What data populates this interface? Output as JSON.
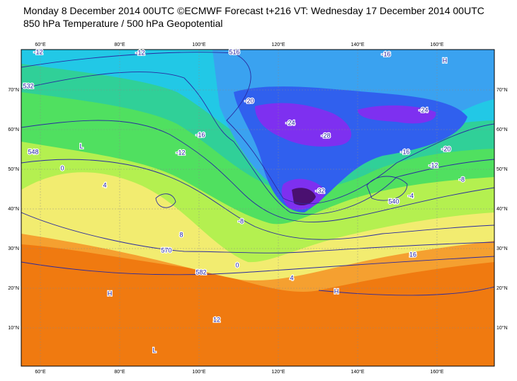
{
  "header": {
    "title": "Monday 8 December 2014 00UTC ©ECMWF Forecast t+216 VT: Wednesday 17 December 2014 00UTC",
    "subtitle": "850 hPa Temperature / 500 hPa Geopotential"
  },
  "map": {
    "longitude_labels": [
      "60°E",
      "80°E",
      "100°E",
      "120°E",
      "140°E",
      "160°E"
    ],
    "latitude_labels": [
      "70°N",
      "60°N",
      "50°N",
      "40°N",
      "30°N",
      "20°N",
      "10°N"
    ],
    "contour_labels": [
      "-12",
      "-12",
      "516",
      "-16",
      "532",
      "-20",
      "-24",
      "-24",
      "-28",
      "-16",
      "548",
      "-12",
      "-16",
      "-20",
      "-12",
      "0",
      "4",
      "-8",
      "-32",
      "540",
      "-8",
      "-4",
      "8",
      "570",
      "0",
      "582",
      "4",
      "16",
      "12",
      "H",
      "L",
      "H",
      "H",
      "L"
    ]
  }
}
